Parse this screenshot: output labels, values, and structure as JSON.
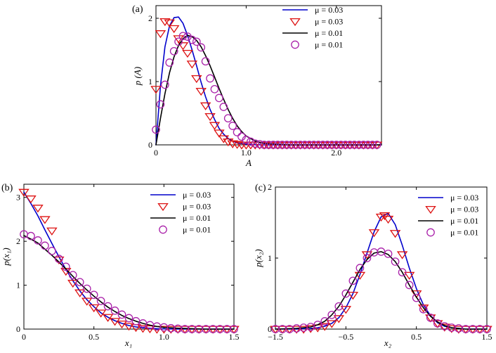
{
  "chart_data": [
    {
      "id": "a",
      "panel_label": "(a)",
      "type": "line",
      "xlabel": "A",
      "ylabel": "p (A)",
      "xlim": [
        0,
        2.5
      ],
      "ylim": [
        0,
        2.2
      ],
      "xticks": [
        0,
        1.0,
        2.0
      ],
      "xtick_labels": [
        "0",
        "1.0",
        "2.0"
      ],
      "yticks": [
        0,
        1,
        2
      ],
      "ytick_labels": [
        "0",
        "1",
        "2"
      ],
      "legend": [
        "μ = 0.03",
        "μ = 0.03",
        "μ = 0.01",
        "μ = 0.01"
      ],
      "series": [
        {
          "name": "μ = 0.03",
          "style": "line",
          "color": "#0000cc",
          "x": [
            0,
            0.05,
            0.1,
            0.15,
            0.2,
            0.25,
            0.3,
            0.35,
            0.4,
            0.45,
            0.5,
            0.55,
            0.6,
            0.65,
            0.7,
            0.75,
            0.8,
            0.85,
            0.9,
            1.0,
            1.2,
            1.5,
            2.0,
            2.5
          ],
          "y": [
            0,
            0.93,
            1.55,
            1.88,
            2.01,
            2.02,
            1.92,
            1.73,
            1.5,
            1.25,
            0.99,
            0.76,
            0.56,
            0.4,
            0.26,
            0.17,
            0.1,
            0.06,
            0.03,
            0.01,
            0,
            0,
            0,
            0
          ]
        },
        {
          "name": "μ = 0.03",
          "style": "triangle",
          "color": "#dd1111",
          "x": [
            0,
            0.05,
            0.1,
            0.15,
            0.2,
            0.25,
            0.3,
            0.35,
            0.4,
            0.45,
            0.5,
            0.55,
            0.6,
            0.65,
            0.7,
            0.75,
            0.8,
            0.85,
            0.9,
            0.95,
            1.0,
            1.05,
            1.1,
            1.15,
            1.2,
            1.25,
            1.3,
            1.35,
            1.4,
            1.45,
            1.5,
            1.55,
            1.6,
            1.65,
            1.7,
            1.75,
            1.8,
            1.85,
            1.9,
            1.95,
            2.0,
            2.05,
            2.1,
            2.15,
            2.2,
            2.25,
            2.3,
            2.35,
            2.4,
            2.45
          ],
          "y": [
            0.88,
            1.76,
            1.95,
            1.93,
            1.84,
            1.68,
            1.57,
            1.45,
            1.28,
            1.05,
            0.85,
            0.62,
            0.45,
            0.31,
            0.19,
            0.1,
            0.05,
            0.02,
            0.01,
            0,
            0,
            0,
            0,
            0,
            0,
            0,
            0,
            0,
            0,
            0,
            0,
            0,
            0,
            0,
            0,
            0,
            0,
            0,
            0,
            0,
            0,
            0,
            0,
            0,
            0,
            0,
            0,
            0,
            0,
            0
          ]
        },
        {
          "name": "μ = 0.01",
          "style": "line",
          "color": "#000000",
          "x": [
            0,
            0.05,
            0.1,
            0.15,
            0.2,
            0.25,
            0.3,
            0.35,
            0.4,
            0.45,
            0.5,
            0.55,
            0.6,
            0.65,
            0.7,
            0.75,
            0.8,
            0.85,
            0.9,
            0.95,
            1.0,
            1.1,
            1.2,
            1.5,
            2.0,
            2.5
          ],
          "y": [
            0,
            0.42,
            0.81,
            1.14,
            1.39,
            1.57,
            1.68,
            1.73,
            1.71,
            1.65,
            1.55,
            1.41,
            1.25,
            1.07,
            0.89,
            0.72,
            0.56,
            0.42,
            0.3,
            0.21,
            0.14,
            0.06,
            0.02,
            0,
            0,
            0
          ]
        },
        {
          "name": "μ = 0.01",
          "style": "circle",
          "color": "#aa22aa",
          "x": [
            0,
            0.05,
            0.1,
            0.15,
            0.2,
            0.25,
            0.3,
            0.35,
            0.4,
            0.45,
            0.5,
            0.55,
            0.6,
            0.65,
            0.7,
            0.75,
            0.8,
            0.85,
            0.9,
            0.95,
            1.0,
            1.05,
            1.1,
            1.15,
            1.2,
            1.25,
            1.3,
            1.35,
            1.4,
            1.45,
            1.5,
            1.55,
            1.6,
            1.65,
            1.7,
            1.75,
            1.8,
            1.85,
            1.9,
            1.95,
            2.0,
            2.05,
            2.1,
            2.15,
            2.2,
            2.25,
            2.3,
            2.35,
            2.4,
            2.45
          ],
          "y": [
            0.24,
            0.64,
            0.95,
            1.3,
            1.48,
            1.63,
            1.72,
            1.71,
            1.66,
            1.63,
            1.54,
            1.32,
            1.05,
            0.88,
            0.74,
            0.6,
            0.42,
            0.3,
            0.2,
            0.13,
            0.08,
            0.05,
            0.02,
            0.01,
            0,
            0,
            0,
            0,
            0,
            0,
            0,
            0,
            0,
            0,
            0,
            0,
            0,
            0,
            0,
            0,
            0,
            0,
            0,
            0,
            0,
            0,
            0,
            0,
            0,
            0
          ]
        }
      ]
    },
    {
      "id": "b",
      "panel_label": "(b)",
      "type": "line",
      "xlabel": "x₁",
      "ylabel": "p(x₁)",
      "xlim": [
        0,
        1.5
      ],
      "ylim": [
        0,
        3.3
      ],
      "xticks": [
        0,
        0.5,
        1.0,
        1.5
      ],
      "xtick_labels": [
        "0",
        "0.5",
        "1.0",
        "1.5"
      ],
      "yticks": [
        0,
        1,
        2,
        3
      ],
      "ytick_labels": [
        "0",
        "1",
        "2",
        "3"
      ],
      "legend": [
        "μ = 0.03",
        "μ = 0.03",
        "μ = 0.01",
        "μ = 0.01"
      ],
      "series": [
        {
          "name": "μ = 0.03",
          "style": "line",
          "color": "#0000cc",
          "x": [
            0,
            0.05,
            0.1,
            0.15,
            0.2,
            0.25,
            0.3,
            0.35,
            0.4,
            0.45,
            0.5,
            0.55,
            0.6,
            0.65,
            0.7,
            0.75,
            0.8,
            0.85,
            0.9,
            0.95,
            1.0,
            1.1,
            1.2,
            1.3,
            1.4,
            1.5
          ],
          "y": [
            3.12,
            2.86,
            2.58,
            2.26,
            1.95,
            1.65,
            1.36,
            1.1,
            0.87,
            0.67,
            0.51,
            0.37,
            0.27,
            0.19,
            0.13,
            0.08,
            0.05,
            0.03,
            0.02,
            0.01,
            0.005,
            0,
            0,
            0,
            0,
            0
          ]
        },
        {
          "name": "μ = 0.03",
          "style": "triangle",
          "color": "#dd1111",
          "x": [
            0,
            0.05,
            0.1,
            0.15,
            0.2,
            0.25,
            0.3,
            0.35,
            0.4,
            0.45,
            0.5,
            0.55,
            0.6,
            0.65,
            0.7,
            0.75,
            0.8,
            0.85,
            0.9,
            0.95,
            1.0,
            1.05,
            1.1,
            1.15,
            1.2,
            1.25,
            1.3,
            1.35,
            1.4,
            1.45,
            1.5
          ],
          "y": [
            3.12,
            2.97,
            2.76,
            2.5,
            2.24,
            1.58,
            1.32,
            1.05,
            0.83,
            0.64,
            0.49,
            0.37,
            0.27,
            0.18,
            0.12,
            0.07,
            0.04,
            0.02,
            0.01,
            0,
            0,
            0,
            0,
            0,
            0,
            0,
            0,
            0,
            0,
            0,
            0
          ]
        },
        {
          "name": "μ = 0.01",
          "style": "line",
          "color": "#000000",
          "x": [
            0,
            0.05,
            0.1,
            0.15,
            0.2,
            0.25,
            0.3,
            0.35,
            0.4,
            0.45,
            0.5,
            0.55,
            0.6,
            0.65,
            0.7,
            0.75,
            0.8,
            0.85,
            0.9,
            0.95,
            1.0,
            1.1,
            1.2,
            1.3,
            1.4,
            1.5
          ],
          "y": [
            2.13,
            2.05,
            1.96,
            1.82,
            1.68,
            1.53,
            1.37,
            1.2,
            1.04,
            0.89,
            0.75,
            0.62,
            0.5,
            0.4,
            0.31,
            0.24,
            0.18,
            0.13,
            0.09,
            0.06,
            0.04,
            0.02,
            0.01,
            0,
            0,
            0
          ]
        },
        {
          "name": "μ = 0.01",
          "style": "circle",
          "color": "#aa22aa",
          "x": [
            0,
            0.05,
            0.1,
            0.15,
            0.2,
            0.25,
            0.3,
            0.35,
            0.4,
            0.45,
            0.5,
            0.55,
            0.6,
            0.65,
            0.7,
            0.75,
            0.8,
            0.85,
            0.9,
            0.95,
            1.0,
            1.05,
            1.1,
            1.15,
            1.2,
            1.25,
            1.3,
            1.35,
            1.4,
            1.45,
            1.5
          ],
          "y": [
            2.16,
            2.12,
            2.02,
            1.9,
            1.78,
            1.6,
            1.42,
            1.23,
            1.07,
            0.92,
            0.78,
            0.64,
            0.52,
            0.42,
            0.33,
            0.25,
            0.18,
            0.13,
            0.09,
            0.06,
            0.04,
            0.02,
            0.01,
            0,
            0,
            0,
            0,
            0,
            0,
            0,
            0
          ]
        }
      ]
    },
    {
      "id": "c",
      "panel_label": "(c)",
      "type": "line",
      "xlabel": "x₂",
      "ylabel": "p(x₂)",
      "xlim": [
        -1.5,
        1.5
      ],
      "ylim": [
        0,
        2
      ],
      "xticks": [
        -1.5,
        -0.5,
        0.5,
        1.5
      ],
      "xtick_labels": [
        "−1.5",
        "−0.5",
        "0.5",
        "1.5"
      ],
      "yticks": [
        0,
        1,
        2
      ],
      "ytick_labels": [
        "0",
        "1",
        "2"
      ],
      "legend": [
        "μ = 0.03",
        "μ = 0.03",
        "μ = 0.01",
        "μ = 0.01"
      ],
      "series": [
        {
          "name": "μ = 0.03",
          "style": "line",
          "color": "#0000cc",
          "x": [
            -1.5,
            -1.2,
            -1.0,
            -0.9,
            -0.8,
            -0.7,
            -0.6,
            -0.5,
            -0.4,
            -0.3,
            -0.2,
            -0.1,
            0,
            0.1,
            0.2,
            0.3,
            0.4,
            0.5,
            0.6,
            0.7,
            0.8,
            0.9,
            1.0,
            1.2,
            1.5
          ],
          "y": [
            0,
            0,
            0.01,
            0.02,
            0.04,
            0.08,
            0.16,
            0.3,
            0.5,
            0.77,
            1.07,
            1.37,
            1.58,
            1.63,
            1.47,
            1.18,
            0.86,
            0.57,
            0.34,
            0.19,
            0.09,
            0.04,
            0.02,
            0,
            0
          ]
        },
        {
          "name": "μ = 0.03",
          "style": "triangle",
          "color": "#dd1111",
          "x": [
            -1.5,
            -1.4,
            -1.3,
            -1.2,
            -1.1,
            -1.0,
            -0.9,
            -0.8,
            -0.7,
            -0.6,
            -0.5,
            -0.4,
            -0.3,
            -0.2,
            -0.1,
            0,
            0.05,
            0.1,
            0.2,
            0.3,
            0.4,
            0.5,
            0.6,
            0.7,
            0.8,
            0.9,
            1.0,
            1.1,
            1.2,
            1.3,
            1.4,
            1.5
          ],
          "y": [
            0,
            0,
            0,
            0,
            0,
            0.01,
            0.02,
            0.04,
            0.08,
            0.15,
            0.28,
            0.48,
            0.76,
            1.05,
            1.36,
            1.58,
            1.6,
            1.55,
            1.35,
            1.05,
            0.76,
            0.5,
            0.3,
            0.16,
            0.08,
            0.03,
            0.01,
            0,
            0,
            0,
            0,
            0
          ]
        },
        {
          "name": "μ = 0.01",
          "style": "line",
          "color": "#000000",
          "x": [
            -1.5,
            -1.2,
            -1.0,
            -0.9,
            -0.8,
            -0.7,
            -0.6,
            -0.5,
            -0.4,
            -0.3,
            -0.2,
            -0.1,
            0,
            0.1,
            0.2,
            0.3,
            0.4,
            0.5,
            0.6,
            0.7,
            0.8,
            0.9,
            1.0,
            1.2,
            1.5
          ],
          "y": [
            0,
            0.01,
            0.03,
            0.06,
            0.11,
            0.2,
            0.32,
            0.48,
            0.66,
            0.84,
            0.98,
            1.07,
            1.09,
            1.05,
            0.95,
            0.8,
            0.62,
            0.45,
            0.3,
            0.18,
            0.1,
            0.05,
            0.02,
            0,
            0
          ]
        },
        {
          "name": "μ = 0.01",
          "style": "circle",
          "color": "#aa22aa",
          "x": [
            -1.5,
            -1.4,
            -1.3,
            -1.2,
            -1.1,
            -1.0,
            -0.9,
            -0.8,
            -0.7,
            -0.6,
            -0.5,
            -0.4,
            -0.3,
            -0.2,
            -0.1,
            0,
            0.1,
            0.2,
            0.3,
            0.4,
            0.5,
            0.6,
            0.7,
            0.8,
            0.9,
            1.0,
            1.1,
            1.2,
            1.3,
            1.4,
            1.5
          ],
          "y": [
            0,
            0,
            0,
            0.01,
            0.02,
            0.03,
            0.06,
            0.11,
            0.2,
            0.32,
            0.5,
            0.68,
            0.86,
            1.0,
            1.08,
            1.09,
            1.06,
            0.95,
            0.8,
            0.62,
            0.44,
            0.28,
            0.16,
            0.08,
            0.04,
            0.02,
            0.01,
            0,
            0,
            0,
            0
          ]
        }
      ]
    }
  ]
}
